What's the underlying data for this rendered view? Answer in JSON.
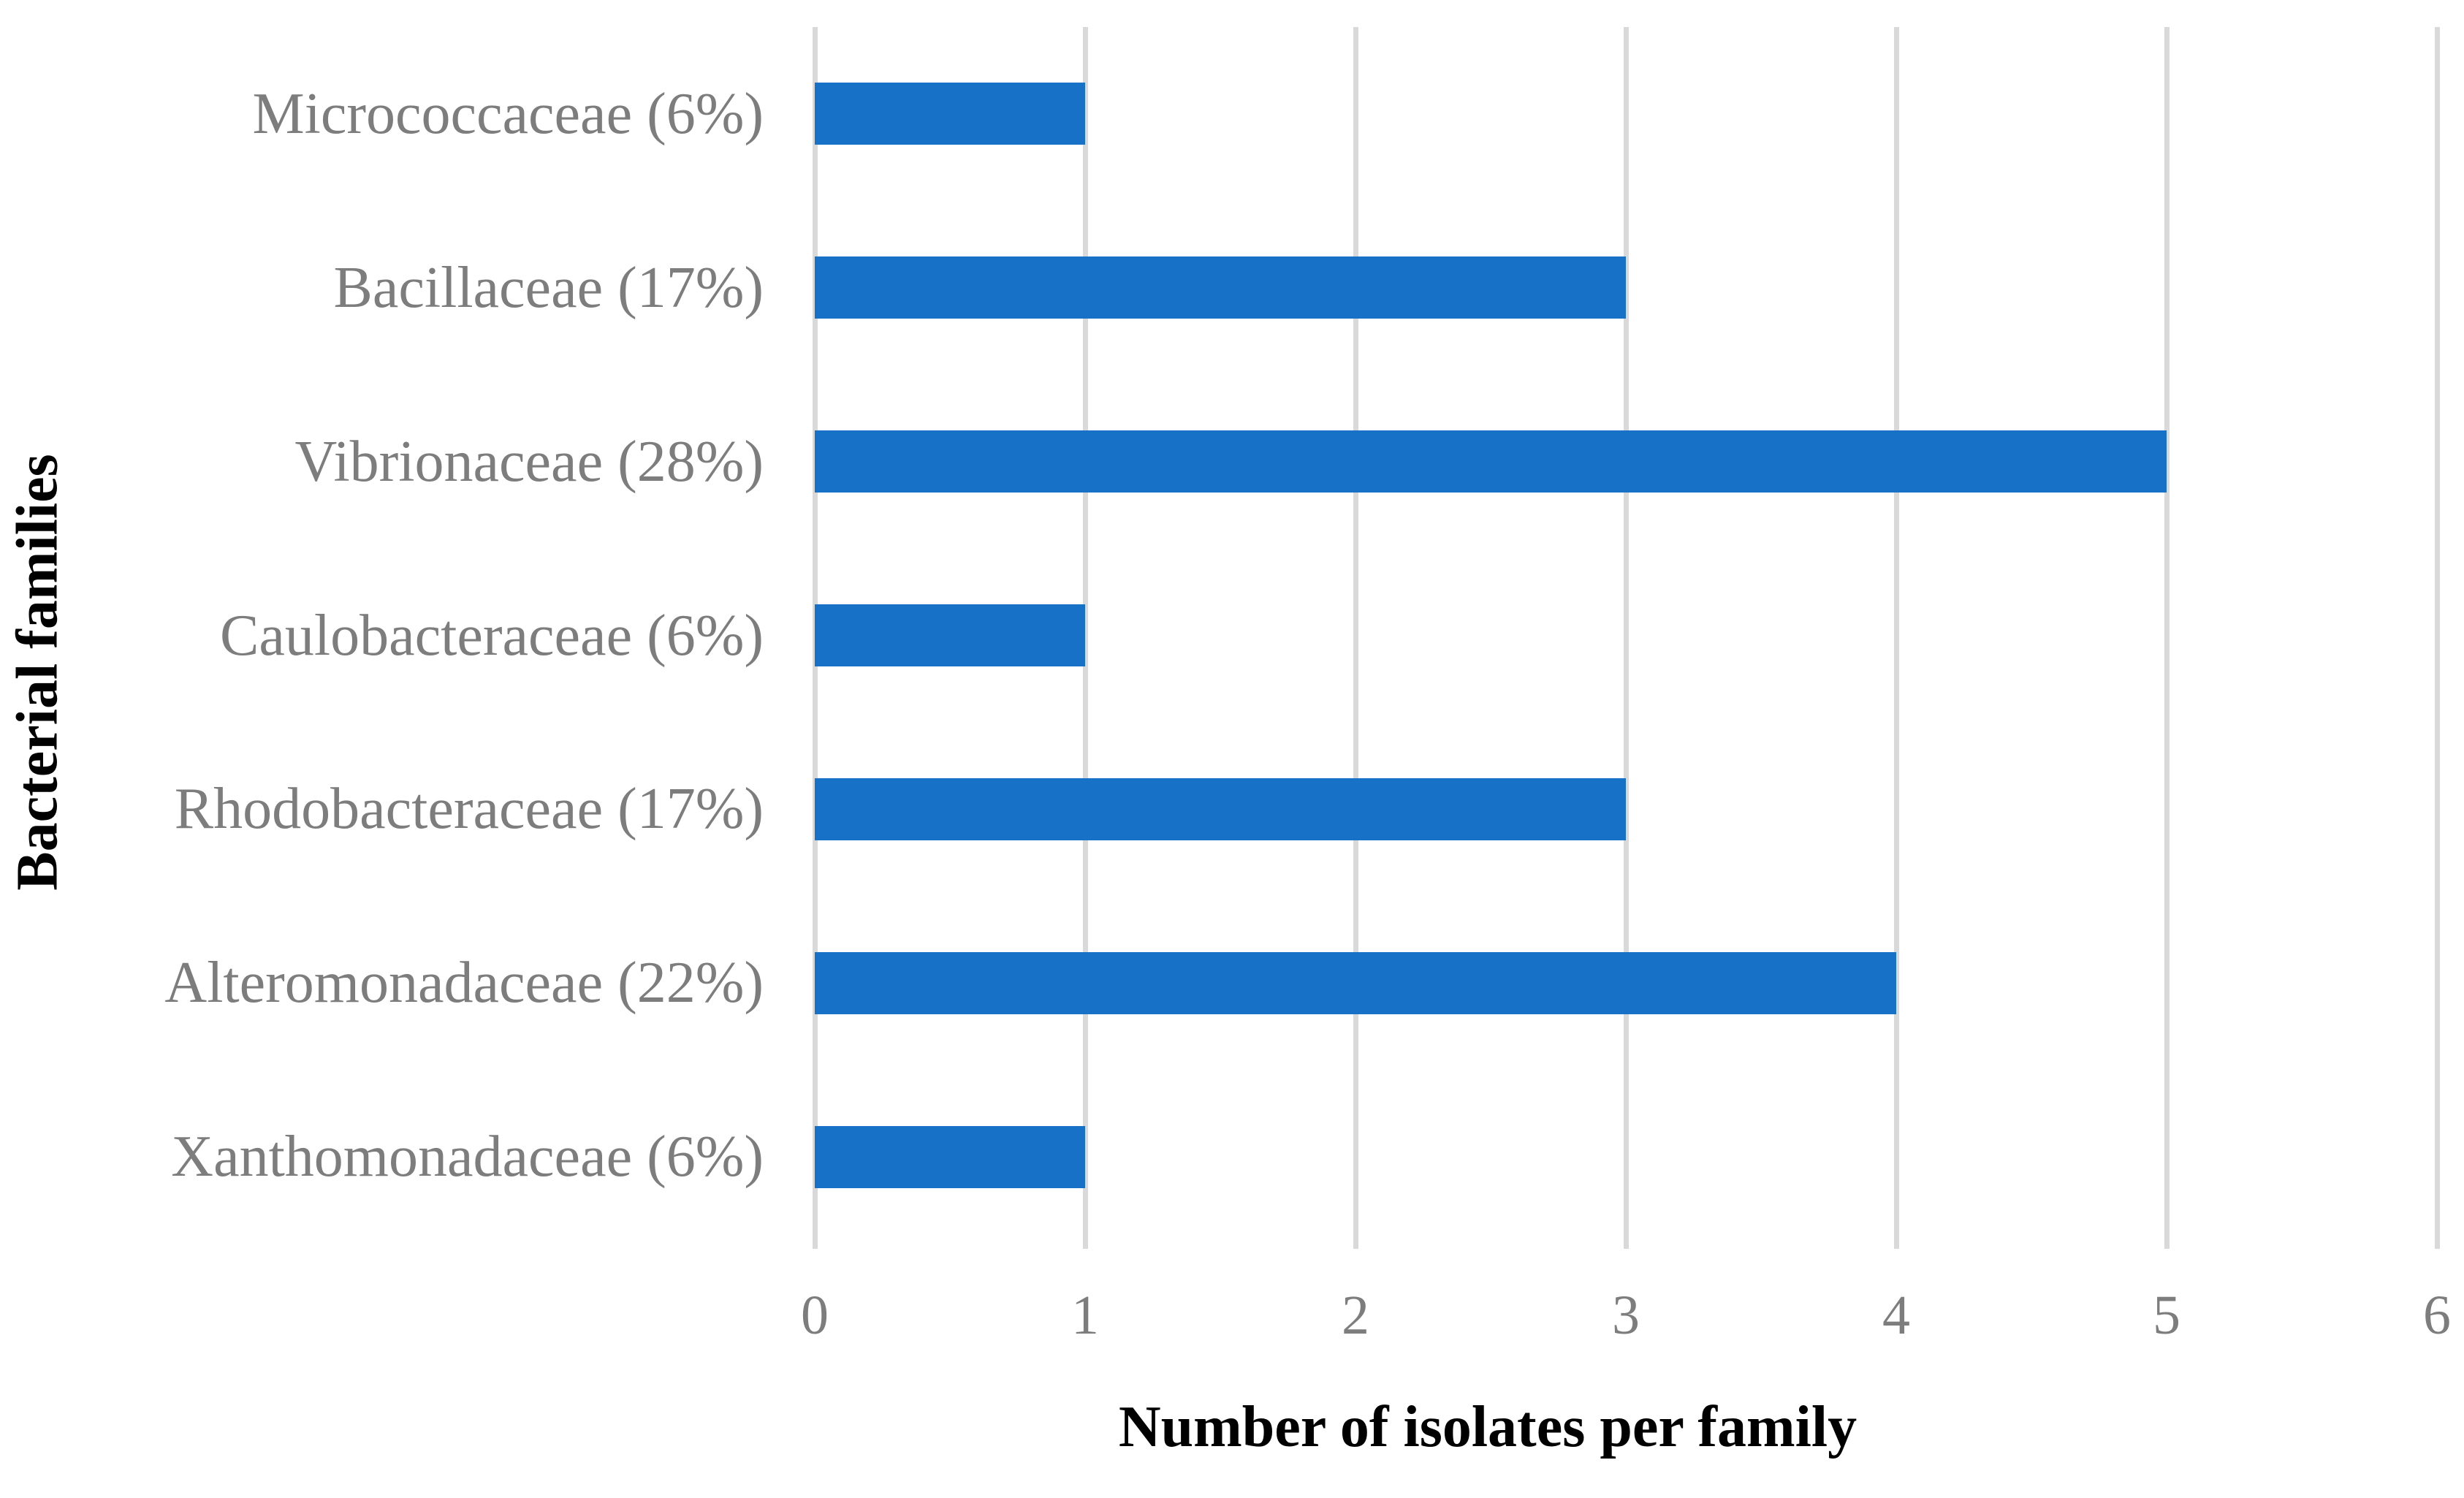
{
  "chart_data": {
    "type": "bar",
    "orientation": "horizontal",
    "title": "",
    "xlabel": "Number of isolates per family",
    "ylabel": "Bacterial families",
    "categories": [
      "Micrococcaceae (6%)",
      "Bacillaceae (17%)",
      "Vibrionaceae (28%)",
      "Caulobacteraceae (6%)",
      "Rhodobacteraceae (17%)",
      "Alteromonadaceae (22%)",
      "Xanthomonadaceae (6%)"
    ],
    "values": [
      1,
      3,
      5,
      1,
      3,
      4,
      1
    ],
    "percentages": [
      6,
      17,
      28,
      6,
      17,
      22,
      6
    ],
    "xlim": [
      0,
      6
    ],
    "xticks": [
      "0",
      "1",
      "2",
      "3",
      "4",
      "5",
      "6"
    ],
    "grid": "vertical-only",
    "legend": "none",
    "colors": {
      "bar": "#1772C7",
      "gridline": "#D9D9D9",
      "tick_label": "#7D7D7D",
      "category_label": "#7D7D7D",
      "axis_title": "#000000",
      "background": "#FFFFFF"
    }
  }
}
